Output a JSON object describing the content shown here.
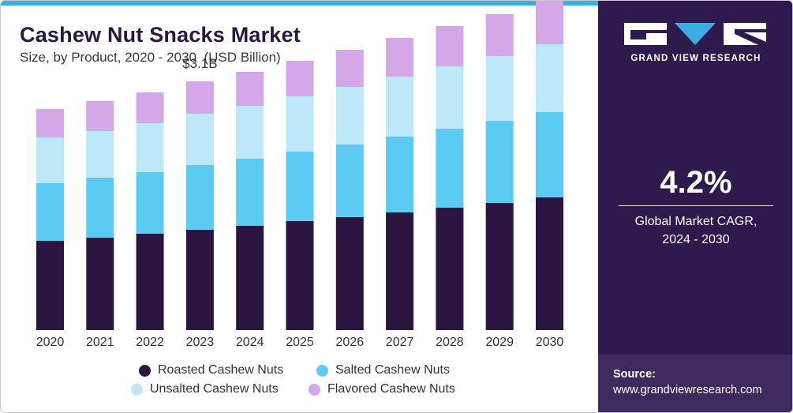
{
  "header": {
    "title": "Cashew Nut Snacks Market",
    "subtitle": "Size, by Product, 2020 - 2030  (USD Billion)"
  },
  "colors": {
    "roasted": "#2a1540",
    "salted": "#5ccbf3",
    "unsalted": "#bde8f8",
    "flavored": "#d4a8e8",
    "panel": "#2e1a4d",
    "accent": "#3aaee0"
  },
  "chart_data": {
    "type": "bar",
    "stacked": true,
    "title": "Cashew Nut Snacks Market",
    "subtitle": "Size, by Product, 2020 - 2030  (USD Billion)",
    "categories": [
      "2020",
      "2021",
      "2022",
      "2023",
      "2024",
      "2025",
      "2026",
      "2027",
      "2028",
      "2029",
      "2030"
    ],
    "series": [
      {
        "name": "Roasted Cashew Nuts",
        "color": "#2a1540",
        "values": [
          1.13,
          1.17,
          1.22,
          1.27,
          1.32,
          1.38,
          1.43,
          1.49,
          1.55,
          1.61,
          1.68
        ]
      },
      {
        "name": "Salted Cashew Nuts",
        "color": "#5ccbf3",
        "values": [
          0.73,
          0.76,
          0.78,
          0.82,
          0.85,
          0.88,
          0.92,
          0.96,
          1.0,
          1.04,
          1.08
        ]
      },
      {
        "name": "Unsalted Cashew Nuts",
        "color": "#bde8f8",
        "values": [
          0.58,
          0.59,
          0.62,
          0.65,
          0.67,
          0.7,
          0.73,
          0.76,
          0.79,
          0.82,
          0.86
        ]
      },
      {
        "name": "Flavored Cashew Nuts",
        "color": "#d4a8e8",
        "values": [
          0.36,
          0.38,
          0.39,
          0.41,
          0.43,
          0.45,
          0.47,
          0.49,
          0.51,
          0.53,
          0.55
        ]
      }
    ],
    "annotations": [
      {
        "category": "2023",
        "text": "$3.1B"
      }
    ],
    "ylim": [
      0,
      4.2
    ],
    "grid": false,
    "legend_position": "bottom"
  },
  "legend": [
    {
      "label": "Roasted Cashew Nuts",
      "color": "#2a1540"
    },
    {
      "label": "Salted Cashew Nuts",
      "color": "#5ccbf3"
    },
    {
      "label": "Unsalted Cashew Nuts",
      "color": "#bde8f8"
    },
    {
      "label": "Flavored Cashew Nuts",
      "color": "#d4a8e8"
    }
  ],
  "side_panel": {
    "brand": "GRAND VIEW RESEARCH",
    "logo_icon": "gvr-logo-icon",
    "cagr_value": "4.2%",
    "cagr_label_line1": "Global Market CAGR,",
    "cagr_label_line2": "2024 - 2030",
    "source_label": "Source:",
    "source_url": "www.grandviewresearch.com"
  }
}
